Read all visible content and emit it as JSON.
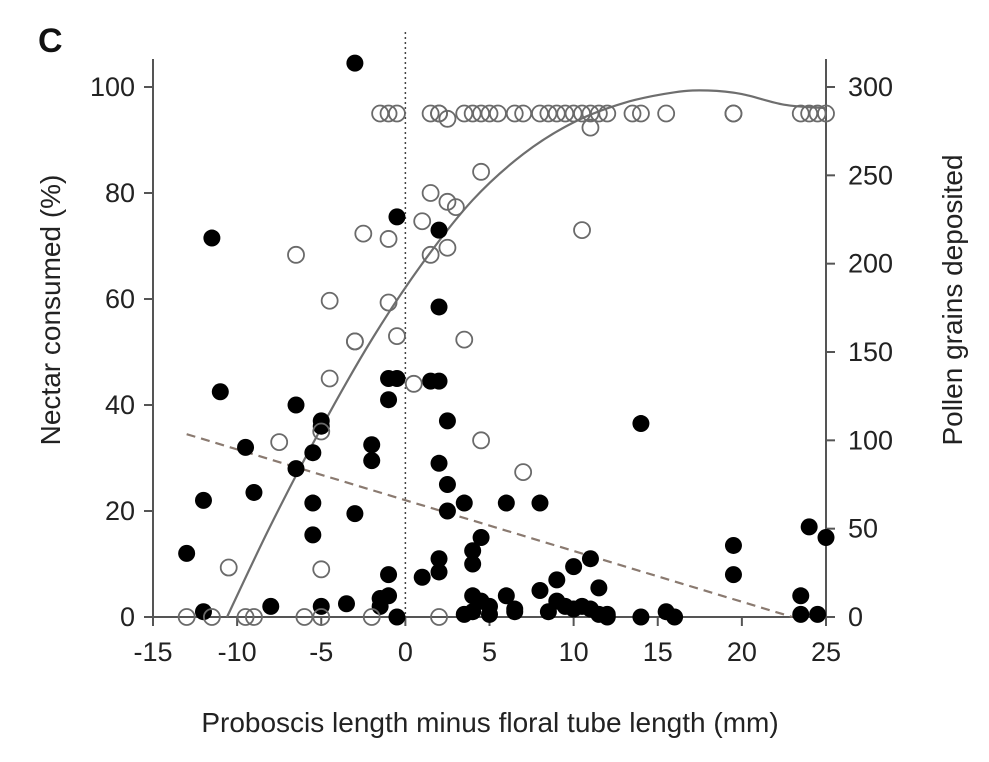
{
  "chart_data": {
    "type": "scatter",
    "panel_label": "C",
    "xlabel": "Proboscis length minus floral tube length (mm)",
    "ylabel_left": "Nectar consumed (%)",
    "ylabel_right": "Pollen grains deposited",
    "xlim": [
      -15,
      25
    ],
    "ylim_left": [
      0,
      100
    ],
    "ylim_right": [
      0,
      300
    ],
    "x_ticks": [
      "-15",
      "-10",
      "-5",
      "0",
      "5",
      "10",
      "15",
      "20",
      "25"
    ],
    "y_ticks_left": [
      "0",
      "20",
      "40",
      "60",
      "80",
      "100"
    ],
    "y_ticks_right": [
      "0",
      "50",
      "100",
      "150",
      "200",
      "250",
      "300"
    ],
    "grid": false,
    "reference_line_x": 0,
    "series": [
      {
        "marker": "filled-circle",
        "axis": "left",
        "points": [
          [
            -3,
            104.5
          ],
          [
            -11.5,
            71.5
          ],
          [
            -11,
            42.5
          ],
          [
            -9.5,
            32
          ],
          [
            -9,
            23.5
          ],
          [
            -12,
            22
          ],
          [
            -13,
            12
          ],
          [
            -12,
            1
          ],
          [
            -8,
            2
          ],
          [
            -6.5,
            40
          ],
          [
            -6.5,
            28
          ],
          [
            -5,
            37
          ],
          [
            -5,
            36
          ],
          [
            -5.5,
            31
          ],
          [
            -5.5,
            21.5
          ],
          [
            -5.5,
            15.5
          ],
          [
            -5,
            2
          ],
          [
            -3,
            19.5
          ],
          [
            -3.5,
            2.5
          ],
          [
            -2,
            29.5
          ],
          [
            -2,
            32.5
          ],
          [
            -1.5,
            3.5
          ],
          [
            -1.5,
            2
          ],
          [
            -1,
            8
          ],
          [
            -1,
            41
          ],
          [
            -1,
            45
          ],
          [
            -0.5,
            45
          ],
          [
            -1,
            4
          ],
          [
            -0.5,
            0
          ],
          [
            -0.5,
            75.5
          ],
          [
            1,
            7.5
          ],
          [
            1.5,
            44.5
          ],
          [
            2,
            44.5
          ],
          [
            2,
            73
          ],
          [
            2,
            58.5
          ],
          [
            2,
            29
          ],
          [
            2,
            11
          ],
          [
            2,
            8.5
          ],
          [
            2.5,
            37
          ],
          [
            2.5,
            25
          ],
          [
            2.5,
            20
          ],
          [
            3.5,
            21.5
          ],
          [
            4,
            12.5
          ],
          [
            4.5,
            15
          ],
          [
            4,
            10
          ],
          [
            4,
            4
          ],
          [
            4,
            1
          ],
          [
            4.5,
            3
          ],
          [
            5,
            2
          ],
          [
            5,
            0.5
          ],
          [
            3.5,
            0.5
          ],
          [
            6,
            21.5
          ],
          [
            6.5,
            1.5
          ],
          [
            6.5,
            1
          ],
          [
            6,
            4
          ],
          [
            8,
            21.5
          ],
          [
            8,
            5
          ],
          [
            8.5,
            1
          ],
          [
            9,
            7
          ],
          [
            9,
            3
          ],
          [
            9.5,
            2
          ],
          [
            10,
            9.5
          ],
          [
            10,
            1.5
          ],
          [
            10.5,
            2
          ],
          [
            11,
            11
          ],
          [
            11,
            1.5
          ],
          [
            11.5,
            5.5
          ],
          [
            11.5,
            0.5
          ],
          [
            12,
            0
          ],
          [
            12,
            0.5
          ],
          [
            14,
            36.5
          ],
          [
            14,
            0
          ],
          [
            15.5,
            1
          ],
          [
            16,
            0
          ],
          [
            19.5,
            13.5
          ],
          [
            19.5,
            8
          ],
          [
            23.5,
            4
          ],
          [
            23.5,
            0.5
          ],
          [
            24,
            17
          ],
          [
            24.5,
            0.5
          ],
          [
            25,
            15
          ]
        ]
      },
      {
        "marker": "open-circle",
        "axis": "right",
        "points": [
          [
            -13,
            0
          ],
          [
            -11.5,
            0
          ],
          [
            -10.5,
            28
          ],
          [
            -9.5,
            0
          ],
          [
            -9,
            0
          ],
          [
            -7.5,
            99
          ],
          [
            -6.5,
            205
          ],
          [
            -6,
            0
          ],
          [
            -5,
            105
          ],
          [
            -5,
            27
          ],
          [
            -5,
            0
          ],
          [
            -4.5,
            135
          ],
          [
            -4.5,
            179
          ],
          [
            -3,
            156
          ],
          [
            -3,
            156
          ],
          [
            -2.5,
            217
          ],
          [
            -2,
            0
          ],
          [
            -1.5,
            285
          ],
          [
            -1,
            285
          ],
          [
            -1,
            178
          ],
          [
            -1,
            214
          ],
          [
            -0.5,
            285
          ],
          [
            -0.5,
            159
          ],
          [
            0.5,
            132
          ],
          [
            1,
            224
          ],
          [
            1.5,
            240
          ],
          [
            1.5,
            205
          ],
          [
            1.5,
            285
          ],
          [
            2,
            0
          ],
          [
            2,
            285
          ],
          [
            2,
            285
          ],
          [
            2.5,
            282
          ],
          [
            2.5,
            235
          ],
          [
            2.5,
            209
          ],
          [
            3,
            232
          ],
          [
            3.5,
            157
          ],
          [
            3.5,
            285
          ],
          [
            4,
            285
          ],
          [
            4.5,
            252
          ],
          [
            4.5,
            100
          ],
          [
            4.5,
            285
          ],
          [
            5,
            285
          ],
          [
            5.5,
            285
          ],
          [
            6.5,
            285
          ],
          [
            7,
            82
          ],
          [
            7,
            285
          ],
          [
            8,
            285
          ],
          [
            8.5,
            285
          ],
          [
            9,
            285
          ],
          [
            9.5,
            285
          ],
          [
            10,
            285
          ],
          [
            10.5,
            285
          ],
          [
            10.5,
            219
          ],
          [
            11,
            285
          ],
          [
            11,
            277
          ],
          [
            11.5,
            285
          ],
          [
            12,
            285
          ],
          [
            13.5,
            285
          ],
          [
            14,
            285
          ],
          [
            15.5,
            285
          ],
          [
            19.5,
            285
          ],
          [
            19.5,
            285
          ],
          [
            23.5,
            285
          ],
          [
            24,
            285
          ],
          [
            24.5,
            285
          ],
          [
            25,
            285
          ]
        ]
      }
    ],
    "fits": [
      {
        "style": "dashed",
        "axis": "left",
        "points": [
          [
            -13,
            34.5
          ],
          [
            23,
            0
          ]
        ]
      },
      {
        "style": "solid",
        "axis": "right",
        "points": [
          [
            -10.6,
            0
          ],
          [
            -8,
            52
          ],
          [
            -5,
            107
          ],
          [
            -2,
            157
          ],
          [
            1,
            200
          ],
          [
            4,
            236
          ],
          [
            7,
            262
          ],
          [
            10,
            280
          ],
          [
            13,
            291
          ],
          [
            16,
            297
          ],
          [
            18,
            298
          ],
          [
            20,
            296
          ],
          [
            22.5,
            290
          ],
          [
            25,
            288
          ]
        ]
      }
    ]
  }
}
